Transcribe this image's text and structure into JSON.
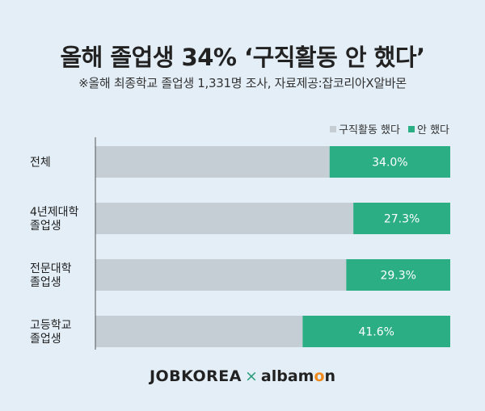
{
  "header": {
    "title": "올해 졸업생 34% ‘구직활동 안 했다’",
    "subtitle": "※올해 최종학교 졸업생 1,331명 조사, 자료제공:잡코리아X알바몬"
  },
  "colors": {
    "did": "#c6ced5",
    "didnt": "#2bae83",
    "background": "#e3eef7"
  },
  "chart_data": {
    "type": "bar",
    "orientation": "horizontal",
    "stacked": true,
    "categories": [
      [
        "전체"
      ],
      [
        "4년제대학",
        "졸업생"
      ],
      [
        "전문대학",
        "졸업생"
      ],
      [
        "고등학교",
        "졸업생"
      ]
    ],
    "series": [
      {
        "name": "구직활동 했다",
        "values": [
          66.0,
          72.7,
          70.7,
          58.4
        ]
      },
      {
        "name": "안 했다",
        "values": [
          34.0,
          27.3,
          29.3,
          41.6
        ],
        "labels": [
          "34.0%",
          "27.3%",
          "29.3%",
          "41.6%"
        ]
      }
    ],
    "xlim": [
      0,
      100
    ],
    "legend_position": "top-right",
    "grid": false
  },
  "footer": {
    "brand_left": "JOBKOREA",
    "separator": "×",
    "brand_right_a": "albam",
    "brand_right_o": "o",
    "brand_right_b": "n"
  }
}
